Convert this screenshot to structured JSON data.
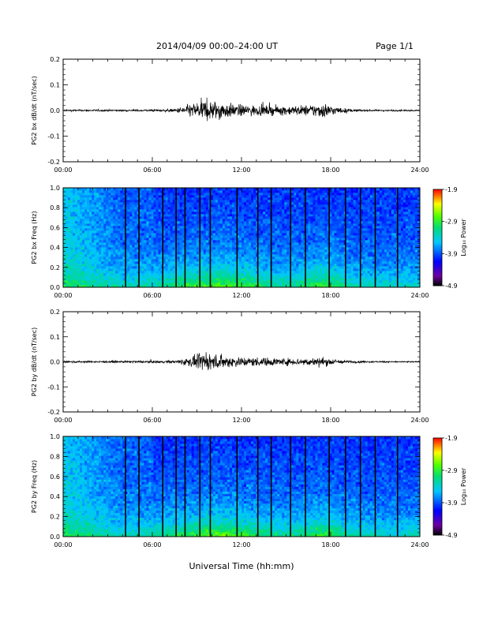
{
  "header": {
    "title": "2014/04/09   00:00–24:00 UT",
    "page": "Page 1/1"
  },
  "xlabel": "Universal Time (hh:mm)",
  "chart_data": [
    {
      "type": "line",
      "ylabel": "PG2 bx dB/dt (nT/sec)",
      "xlim": [
        0,
        24
      ],
      "ylim": [
        -0.2,
        0.2
      ],
      "x_ticks": [
        "00:00",
        "06:00",
        "12:00",
        "18:00",
        "24:00"
      ],
      "y_ticks": [
        "-0.2",
        "-0.1",
        "0.0",
        "0.1",
        "0.2"
      ],
      "envelope": {
        "x_hours": [
          0,
          2,
          4,
          6,
          7.5,
          8.5,
          9.5,
          10.5,
          11.5,
          12.5,
          13.5,
          14.5,
          15.5,
          16.5,
          17.5,
          18.5,
          19.5,
          21,
          24
        ],
        "amplitude": [
          0.005,
          0.006,
          0.006,
          0.007,
          0.01,
          0.04,
          0.07,
          0.06,
          0.04,
          0.035,
          0.03,
          0.03,
          0.03,
          0.035,
          0.05,
          0.02,
          0.008,
          0.005,
          0.004
        ]
      }
    },
    {
      "type": "heatmap",
      "ylabel": "PG2 bx Freq (Hz)",
      "xlim": [
        0,
        24
      ],
      "ylim": [
        0,
        1
      ],
      "x_ticks": [
        "00:00",
        "06:00",
        "12:00",
        "18:00",
        "24:00"
      ],
      "y_ticks": [
        "0.0",
        "0.2",
        "0.4",
        "0.6",
        "0.8",
        "1.0"
      ],
      "colorbar": {
        "label": "Log₁₀ Power",
        "range": [
          -4.9,
          -1.9
        ],
        "ticks": [
          "-1.9",
          "-2.9",
          "-3.9",
          "-4.9"
        ]
      },
      "gap_lines_hours": [
        4.2,
        5.1,
        6.7,
        7.6,
        8.2,
        9.2,
        9.9,
        11.7,
        13.1,
        14.0,
        15.3,
        16.3,
        17.9,
        19.0,
        20.0,
        21.0,
        22.5
      ]
    },
    {
      "type": "line",
      "ylabel": "PG2 by dB/dt (nT/sec)",
      "xlim": [
        0,
        24
      ],
      "ylim": [
        -0.2,
        0.2
      ],
      "x_ticks": [
        "00:00",
        "06:00",
        "12:00",
        "18:00",
        "24:00"
      ],
      "y_ticks": [
        "-0.2",
        "-0.1",
        "0.0",
        "0.1",
        "0.2"
      ],
      "envelope": {
        "x_hours": [
          0,
          2,
          4,
          6,
          7.5,
          8.5,
          9.5,
          10.5,
          11.5,
          12.5,
          13.5,
          14.5,
          15.5,
          16.5,
          17.5,
          18.5,
          19.5,
          21,
          24
        ],
        "amplitude": [
          0.006,
          0.006,
          0.006,
          0.007,
          0.01,
          0.03,
          0.055,
          0.045,
          0.035,
          0.03,
          0.028,
          0.025,
          0.022,
          0.025,
          0.03,
          0.015,
          0.008,
          0.005,
          0.004
        ]
      }
    },
    {
      "type": "heatmap",
      "ylabel": "PG2 by Freq (Hz)",
      "xlim": [
        0,
        24
      ],
      "ylim": [
        0,
        1
      ],
      "x_ticks": [
        "00:00",
        "06:00",
        "12:00",
        "18:00",
        "24:00"
      ],
      "y_ticks": [
        "0.0",
        "0.2",
        "0.4",
        "0.6",
        "0.8",
        "1.0"
      ],
      "colorbar": {
        "label": "Log₁₀ Power",
        "range": [
          -4.9,
          -1.9
        ],
        "ticks": [
          "-1.9",
          "-2.9",
          "-3.9",
          "-4.9"
        ]
      },
      "gap_lines_hours": [
        4.2,
        5.1,
        6.7,
        7.6,
        8.2,
        9.2,
        9.9,
        11.7,
        13.1,
        14.0,
        15.3,
        16.3,
        17.9,
        19.0,
        20.0,
        21.0,
        22.5
      ]
    }
  ]
}
